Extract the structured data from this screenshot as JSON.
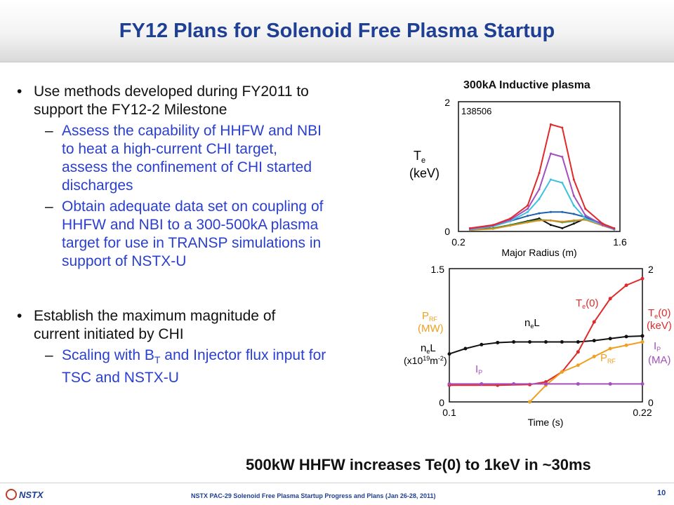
{
  "slide": {
    "title": "FY12 Plans for Solenoid Free Plasma Startup",
    "bullets": [
      {
        "text": "Use methods developed during FY2011 to support the FY12-2 Milestone",
        "lines": [
          "Use methods developed during FY2011 to",
          "support the FY12-2 Milestone"
        ],
        "subs": [
          {
            "text": "Assess the capability of HHFW and NBI to heat a high-current CHI target, assess the confinement of CHI started discharges",
            "lines": [
              "Assess the capability of HHFW and NBI",
              "to heat a high-current CHI target,",
              "assess the confinement of CHI started",
              "discharges"
            ]
          },
          {
            "text": "Obtain adequate data set on coupling of HHFW and NBI to a 300-500kA plasma target for use in TRANSP simulations in support of NSTX-U",
            "lines": [
              "Obtain adequate data set on coupling of",
              "HHFW and NBI to a 300-500kA plasma",
              "target for use in TRANSP simulations in",
              "support of NSTX-U"
            ]
          }
        ]
      },
      {
        "text": "Establish the maximum magnitude of current initiated by CHI",
        "lines": [
          "Establish the maximum magnitude of",
          "current initiated by CHI"
        ],
        "subs": [
          {
            "text": "Scaling with BT and Injector flux input for TSC and NSTX-U",
            "lines": [
              "Scaling with B_T and Injector flux input for",
              "TSC and NSTX-U"
            ]
          }
        ]
      }
    ],
    "figure_label": "300kA Inductive plasma",
    "caption": "500kW HHFW increases Te(0) to 1keV in ~30ms",
    "footer": {
      "logo": "NSTX",
      "text": "NSTX PAC-29  Solenoid Free Plasma Startup Progress and Plans (Jan 26-28, 2011)",
      "page": "10"
    },
    "colors": {
      "title": "#1f3f94",
      "sub_bullet": "#2a3fd0"
    }
  },
  "chart_data": [
    {
      "type": "line",
      "shot": "138506",
      "xlabel": "Major Radius (m)",
      "ylabel": "Te (keV)",
      "xlim": [
        0.2,
        1.6
      ],
      "ylim": [
        0,
        2
      ],
      "x_ticks": [
        "0.2",
        "1.6"
      ],
      "y_ticks": [
        "0",
        "1",
        "2"
      ],
      "series": [
        {
          "color": "#111111",
          "x": [
            0.3,
            0.5,
            0.65,
            0.8,
            0.9,
            1.0,
            1.1,
            1.2,
            1.3,
            1.45,
            1.55
          ],
          "y": [
            0.03,
            0.05,
            0.1,
            0.16,
            0.2,
            0.1,
            0.05,
            0.12,
            0.2,
            0.1,
            0.03
          ]
        },
        {
          "color": "#2e9b3a",
          "x": [
            0.3,
            0.5,
            0.65,
            0.8,
            0.9,
            1.0,
            1.1,
            1.2,
            1.3,
            1.45,
            1.55
          ],
          "y": [
            0.02,
            0.05,
            0.1,
            0.15,
            0.18,
            0.17,
            0.14,
            0.16,
            0.19,
            0.1,
            0.03
          ]
        },
        {
          "color": "#d98c1f",
          "x": [
            0.3,
            0.5,
            0.65,
            0.8,
            0.9,
            1.0,
            1.1,
            1.2,
            1.3,
            1.45,
            1.55
          ],
          "y": [
            0.02,
            0.04,
            0.09,
            0.14,
            0.17,
            0.17,
            0.15,
            0.17,
            0.18,
            0.09,
            0.03
          ]
        },
        {
          "color": "#1f5fb0",
          "x": [
            0.3,
            0.5,
            0.65,
            0.8,
            0.9,
            1.0,
            1.1,
            1.2,
            1.3,
            1.45,
            1.55
          ],
          "y": [
            0.03,
            0.08,
            0.16,
            0.24,
            0.28,
            0.3,
            0.3,
            0.27,
            0.22,
            0.12,
            0.04
          ]
        },
        {
          "color": "#3fc0dc",
          "x": [
            0.3,
            0.5,
            0.65,
            0.8,
            0.9,
            1.0,
            1.1,
            1.2,
            1.3,
            1.45,
            1.55
          ],
          "y": [
            0.03,
            0.08,
            0.16,
            0.3,
            0.5,
            0.8,
            0.75,
            0.4,
            0.2,
            0.1,
            0.03
          ]
        },
        {
          "color": "#a44fbd",
          "x": [
            0.3,
            0.5,
            0.65,
            0.8,
            0.9,
            1.0,
            1.1,
            1.2,
            1.3,
            1.45,
            1.55
          ],
          "y": [
            0.04,
            0.09,
            0.18,
            0.35,
            0.65,
            1.2,
            1.15,
            0.55,
            0.25,
            0.1,
            0.04
          ]
        },
        {
          "color": "#e02a2a",
          "x": [
            0.3,
            0.5,
            0.65,
            0.8,
            0.9,
            1.0,
            1.1,
            1.2,
            1.3,
            1.45,
            1.55
          ],
          "y": [
            0.05,
            0.1,
            0.2,
            0.4,
            0.9,
            1.65,
            1.6,
            0.8,
            0.35,
            0.12,
            0.05
          ]
        }
      ]
    },
    {
      "type": "line",
      "xlabel": "Time (s)",
      "xlim": [
        0.1,
        0.22
      ],
      "x_ticks": [
        "0.1",
        "0.22"
      ],
      "y_left_ticks": [
        "0",
        "1.5"
      ],
      "y_right_ticks": [
        "0",
        "2"
      ],
      "labels": {
        "prf": "P_RF",
        "prf_unit": "(MW)",
        "nel_left": "n_eL",
        "nel_unit": "(x10^19 m^-2)",
        "ip_left": "I_P",
        "te_right": "T_e(0)",
        "te_unit": "(keV)",
        "ip_right": "I_P",
        "ip_unit": "(MA)",
        "nel_in": "n_eL",
        "te_in": "T_e(0)",
        "prf_in": "P_RF"
      },
      "series": [
        {
          "name": "neL",
          "color": "#111111",
          "x": [
            0.1,
            0.11,
            0.12,
            0.13,
            0.14,
            0.15,
            0.16,
            0.17,
            0.18,
            0.19,
            0.2,
            0.21,
            0.22
          ],
          "y": [
            0.72,
            0.8,
            0.86,
            0.89,
            0.9,
            0.9,
            0.9,
            0.9,
            0.9,
            0.92,
            0.95,
            0.98,
            0.99
          ]
        },
        {
          "name": "Te(0)",
          "color": "#e02a2a",
          "x": [
            0.1,
            0.13,
            0.15,
            0.16,
            0.17,
            0.18,
            0.19,
            0.2,
            0.21,
            0.22
          ],
          "y": [
            0.25,
            0.25,
            0.26,
            0.3,
            0.45,
            0.75,
            1.2,
            1.55,
            1.75,
            1.85
          ]
        },
        {
          "name": "PRF",
          "color": "#f0a020",
          "x": [
            0.15,
            0.16,
            0.17,
            0.18,
            0.19,
            0.2,
            0.21,
            0.22
          ],
          "y": [
            0.0,
            0.25,
            0.45,
            0.55,
            0.68,
            0.8,
            0.85,
            0.9
          ]
        },
        {
          "name": "IP",
          "color": "#a44fbd",
          "x": [
            0.1,
            0.12,
            0.14,
            0.16,
            0.18,
            0.2,
            0.22
          ],
          "y": [
            0.27,
            0.27,
            0.27,
            0.27,
            0.27,
            0.27,
            0.27
          ]
        }
      ]
    }
  ]
}
